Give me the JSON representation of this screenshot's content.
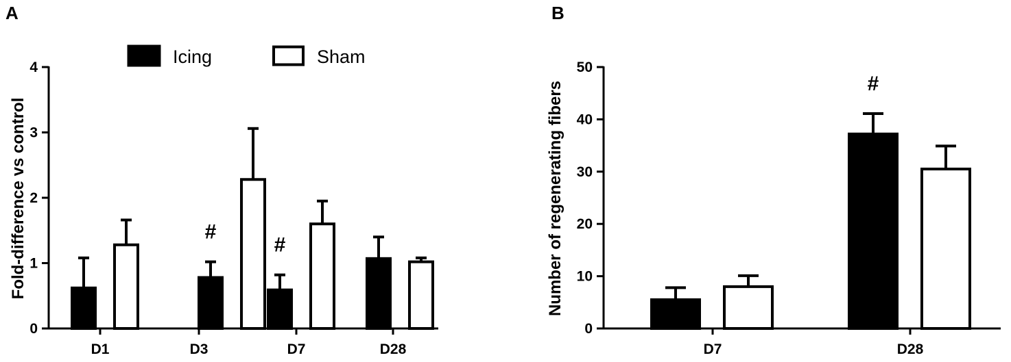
{
  "chart_data": [
    {
      "type": "bar",
      "panel": "A",
      "ylabel": "Fold-difference vs control",
      "xlabel": "",
      "ylim": [
        0,
        4
      ],
      "yticks": [
        0,
        1,
        2,
        3,
        4
      ],
      "categories": [
        "D1",
        "D3",
        "D7",
        "D28"
      ],
      "legend": {
        "placement": "top-center",
        "entries": [
          "Icing",
          "Sham"
        ]
      },
      "series": [
        {
          "name": "Icing",
          "fill": "#000000",
          "values": [
            0.62,
            0.78,
            0.59,
            1.07
          ],
          "errors": [
            0.46,
            0.24,
            0.23,
            0.33
          ]
        },
        {
          "name": "Sham",
          "fill": "#ffffff",
          "values": [
            1.28,
            2.28,
            1.6,
            1.02
          ],
          "errors": [
            0.38,
            0.78,
            0.35,
            0.06
          ]
        }
      ],
      "annotations": [
        {
          "text": "#",
          "category": "D3",
          "series": "Icing"
        },
        {
          "text": "#",
          "category": "D7",
          "series": "Icing"
        }
      ]
    },
    {
      "type": "bar",
      "panel": "B",
      "ylabel": "Number of regenerating fibers",
      "xlabel": "",
      "ylim": [
        0,
        50
      ],
      "yticks": [
        0,
        10,
        20,
        30,
        40,
        50
      ],
      "categories": [
        "D7",
        "D28"
      ],
      "series": [
        {
          "name": "Icing",
          "fill": "#000000",
          "values": [
            5.5,
            37.2
          ],
          "errors": [
            2.3,
            3.9
          ]
        },
        {
          "name": "Sham",
          "fill": "#ffffff",
          "values": [
            8.0,
            30.5
          ],
          "errors": [
            2.1,
            4.4
          ]
        }
      ],
      "annotations": [
        {
          "text": "#",
          "category": "D28",
          "series": "Icing"
        }
      ]
    }
  ]
}
